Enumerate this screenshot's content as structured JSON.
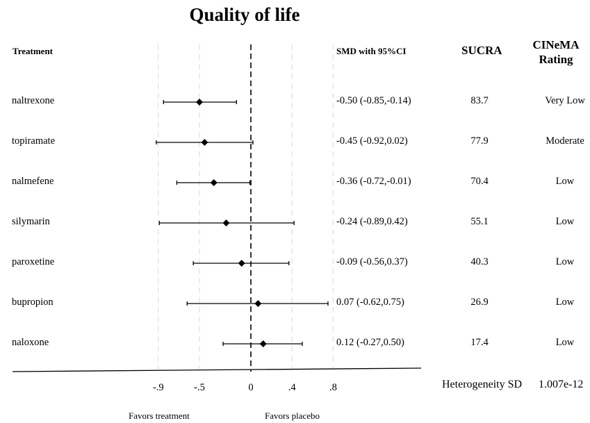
{
  "chart_data": {
    "type": "forest",
    "title": "Quality of life",
    "headers": {
      "treatment": "Treatment",
      "smd": "SMD with 95%CI",
      "sucra": "SUCRA",
      "cinema": "CINeMA Rating"
    },
    "rows": [
      {
        "treatment": "naltrexone",
        "smd": -0.5,
        "lower": -0.85,
        "upper": -0.14,
        "smd_text": "-0.50 (-0.85,-0.14)",
        "sucra": "83.7",
        "cinema": "Very Low"
      },
      {
        "treatment": "topiramate",
        "smd": -0.45,
        "lower": -0.92,
        "upper": 0.02,
        "smd_text": "-0.45 (-0.92,0.02)",
        "sucra": "77.9",
        "cinema": "Moderate"
      },
      {
        "treatment": "nalmefene",
        "smd": -0.36,
        "lower": -0.72,
        "upper": -0.01,
        "smd_text": "-0.36 (-0.72,-0.01)",
        "sucra": "70.4",
        "cinema": "Low"
      },
      {
        "treatment": "silymarin",
        "smd": -0.24,
        "lower": -0.89,
        "upper": 0.42,
        "smd_text": "-0.24 (-0.89,0.42)",
        "sucra": "55.1",
        "cinema": "Low"
      },
      {
        "treatment": "paroxetine",
        "smd": -0.09,
        "lower": -0.56,
        "upper": 0.37,
        "smd_text": "-0.09 (-0.56,0.37)",
        "sucra": "40.3",
        "cinema": "Low"
      },
      {
        "treatment": "bupropion",
        "smd": 0.07,
        "lower": -0.62,
        "upper": 0.75,
        "smd_text": "0.07 (-0.62,0.75)",
        "sucra": "26.9",
        "cinema": "Low"
      },
      {
        "treatment": "naloxone",
        "smd": 0.12,
        "lower": -0.27,
        "upper": 0.5,
        "smd_text": "0.12 (-0.27,0.50)",
        "sucra": "17.4",
        "cinema": "Low"
      }
    ],
    "x_ticks": [
      {
        "value": -0.9,
        "label": "-.9"
      },
      {
        "value": -0.5,
        "label": "-.5"
      },
      {
        "value": 0,
        "label": "0"
      },
      {
        "value": 0.4,
        "label": ".4"
      },
      {
        "value": 0.8,
        "label": ".8"
      }
    ],
    "xlim": [
      -0.9,
      0.8
    ],
    "null_line": 0,
    "favors_left": "Favors treatment",
    "favors_right": "Favors placebo",
    "heterogeneity_label": "Heterogeneity SD",
    "heterogeneity_value": "1.007e-12",
    "colors": {
      "marker": "#000000",
      "grid": "#d9d9d9"
    }
  }
}
